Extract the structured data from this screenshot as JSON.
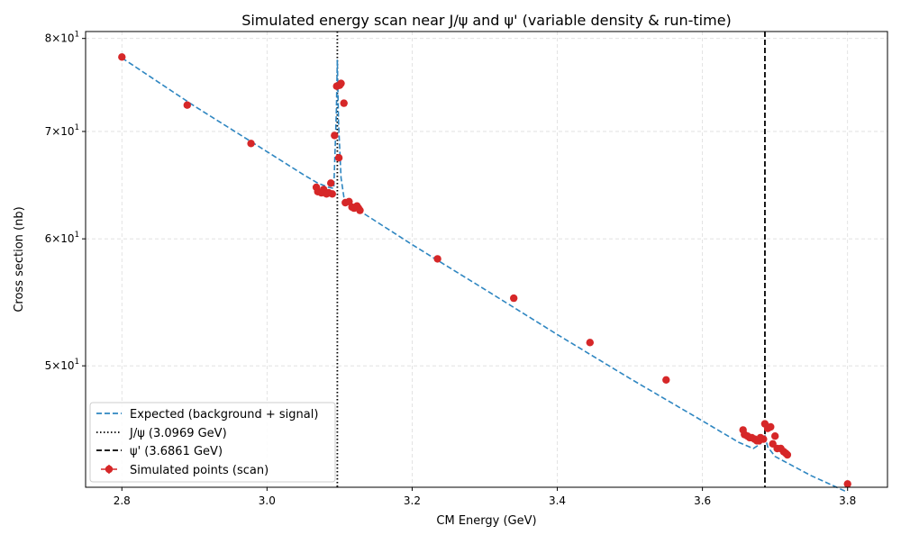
{
  "chart_data": {
    "type": "scatter",
    "title": "Simulated energy scan near J/ψ and ψ' (variable density & run-time)",
    "xlabel": "CM Energy (GeV)",
    "ylabel": "Cross section (nb)",
    "xlim": [
      2.75,
      3.855
    ],
    "ylim": [
      42.0,
      80.8
    ],
    "y_scale": "log",
    "grid": true,
    "legend_position": "lower-left",
    "x_ticks": [
      {
        "value": 2.8,
        "label": "2.8"
      },
      {
        "value": 3.0,
        "label": "3.0"
      },
      {
        "value": 3.2,
        "label": "3.2"
      },
      {
        "value": 3.4,
        "label": "3.4"
      },
      {
        "value": 3.6,
        "label": "3.6"
      },
      {
        "value": 3.8,
        "label": "3.8"
      }
    ],
    "y_ticks": [
      {
        "value": 50,
        "mantissa": "5",
        "base": "10",
        "exponent": "1"
      },
      {
        "value": 60,
        "mantissa": "6",
        "base": "10",
        "exponent": "1"
      },
      {
        "value": 70,
        "mantissa": "7",
        "base": "10",
        "exponent": "1"
      },
      {
        "value": 80,
        "mantissa": "8",
        "base": "10",
        "exponent": "1"
      }
    ],
    "colors": {
      "expected": "#2e86c1",
      "points": "#d62728",
      "jpsi_line": "#000000",
      "psi2s_line": "#000000",
      "grid": "#dddddd"
    },
    "series": [
      {
        "name": "Expected (background + signal)",
        "kind": "line",
        "style": "dashed",
        "x": [
          2.8,
          2.9,
          3.0,
          3.05,
          3.07,
          3.085,
          3.092,
          3.0955,
          3.0969,
          3.0985,
          3.102,
          3.106,
          3.11,
          3.2,
          3.3,
          3.4,
          3.5,
          3.6,
          3.65,
          3.67,
          3.68,
          3.6861,
          3.69,
          3.7,
          3.75,
          3.8
        ],
        "y": [
          77.8,
          72.6,
          68.0,
          65.8,
          65.0,
          64.6,
          64.5,
          72.0,
          77.6,
          71.0,
          65.5,
          63.7,
          63.2,
          59.5,
          55.8,
          52.3,
          49.1,
          46.2,
          44.8,
          44.4,
          44.7,
          45.2,
          44.5,
          43.9,
          42.7,
          41.7
        ]
      },
      {
        "name": "J/ψ (3.0969 GeV)",
        "kind": "vline",
        "style": "dotted",
        "x": 3.0969
      },
      {
        "name": "ψ' (3.6861 GeV)",
        "kind": "vline",
        "style": "dashed",
        "x": 3.6861
      },
      {
        "name": "Simulated points (scan)",
        "kind": "points",
        "x": [
          2.8,
          2.89,
          2.978,
          3.068,
          3.07,
          3.075,
          3.078,
          3.082,
          3.085,
          3.088,
          3.09,
          3.093,
          3.096,
          3.099,
          3.1,
          3.102,
          3.106,
          3.108,
          3.113,
          3.117,
          3.12,
          3.124,
          3.126,
          3.128,
          3.235,
          3.34,
          3.445,
          3.55,
          3.656,
          3.658,
          3.662,
          3.665,
          3.668,
          3.672,
          3.675,
          3.678,
          3.68,
          3.684,
          3.686,
          3.69,
          3.694,
          3.697,
          3.7,
          3.703,
          3.708,
          3.712,
          3.715,
          3.717,
          3.8
        ],
        "y": [
          77.9,
          72.7,
          68.8,
          64.6,
          64.2,
          64.1,
          64.4,
          64.0,
          64.1,
          65.0,
          64.0,
          69.6,
          74.7,
          67.4,
          74.8,
          75.0,
          72.9,
          63.2,
          63.3,
          62.8,
          62.7,
          62.9,
          62.7,
          62.5,
          58.3,
          55.1,
          51.7,
          49.0,
          45.6,
          45.3,
          45.2,
          45.1,
          45.1,
          45.0,
          44.9,
          44.9,
          45.1,
          45.0,
          46.0,
          45.7,
          45.8,
          44.7,
          45.2,
          44.4,
          44.4,
          44.2,
          44.1,
          44.0,
          42.2
        ]
      }
    ]
  }
}
